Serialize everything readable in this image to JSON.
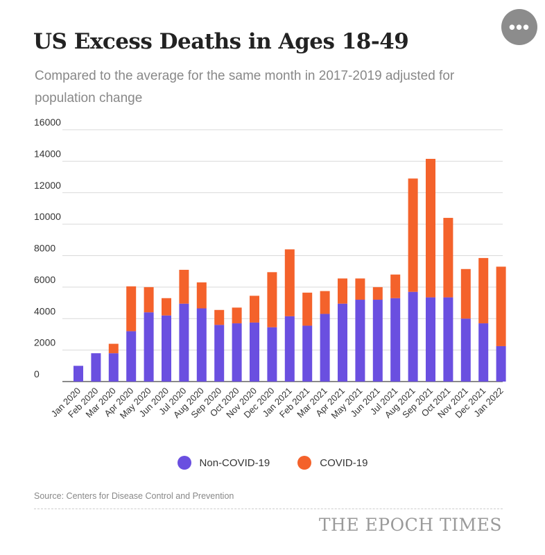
{
  "header": {
    "title": "US Excess Deaths in Ages 18-49",
    "subtitle": "Compared to the average for the same month in 2017-2019 adjusted for population change",
    "more_icon_glyph": "•••"
  },
  "legend": {
    "non_covid_label": "Non-COVID-19",
    "covid_label": "COVID-19"
  },
  "footer": {
    "source": "Source: Centers for Disease Control and Prevention",
    "brand": "THE EPOCH TIMES"
  },
  "chart_data": {
    "type": "bar",
    "stacked": true,
    "title": "US Excess Deaths in Ages 18-49",
    "subtitle": "Compared to the average for the same month in 2017-2019 adjusted for population change",
    "xlabel": "",
    "ylabel": "",
    "ylim": [
      0,
      16000
    ],
    "yticks": [
      0,
      2000,
      4000,
      6000,
      8000,
      10000,
      12000,
      14000,
      16000
    ],
    "grid": true,
    "legend_position": "bottom",
    "categories": [
      "Jan 2020",
      "Feb 2020",
      "Mar 2020",
      "Apr 2020",
      "May 2020",
      "Jun 2020",
      "Jul 2020",
      "Aug 2020",
      "Sep 2020",
      "Oct 2020",
      "Nov 2020",
      "Dec 2020",
      "Jan 2021",
      "Feb 2021",
      "Mar 2021",
      "Apr 2021",
      "May 2021",
      "Jun 2021",
      "Jul 2021",
      "Aug 2021",
      "Sep 2021",
      "Oct 2021",
      "Nov 2021",
      "Dec 2021",
      "Jan 2022"
    ],
    "series": [
      {
        "name": "Non-COVID-19",
        "color": "#6a4fe0",
        "values": [
          1000,
          1800,
          1800,
          3200,
          4400,
          4200,
          4950,
          4650,
          3600,
          3700,
          3750,
          3450,
          4150,
          3550,
          4300,
          4950,
          5200,
          5200,
          5300,
          5700,
          5350,
          5350,
          4000,
          3700,
          2250
        ]
      },
      {
        "name": "COVID-19",
        "color": "#f4622b",
        "values": [
          0,
          0,
          600,
          2850,
          1600,
          1100,
          2150,
          1650,
          950,
          1000,
          1700,
          3500,
          4250,
          2100,
          1450,
          1600,
          1350,
          800,
          1500,
          7200,
          8800,
          5050,
          3150,
          4150,
          5050
        ]
      }
    ],
    "source": "Source: Centers for Disease Control and Prevention"
  }
}
